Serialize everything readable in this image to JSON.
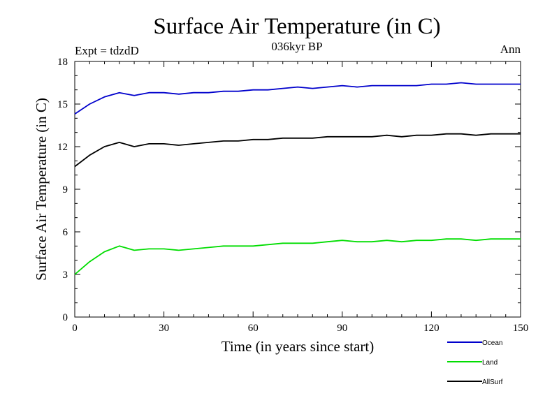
{
  "chart_data": {
    "type": "line",
    "title": "Surface Air Temperature (in C)",
    "subtitle": "036kyr BP",
    "top_left_label": "Expt = tdzdD",
    "top_right_label": "Ann",
    "xlabel": "Time (in years since start)",
    "ylabel": "Surface Air Temperature (in C)",
    "xlim": [
      0,
      150
    ],
    "ylim": [
      0,
      18
    ],
    "xticks": [
      0,
      30,
      60,
      90,
      120,
      150
    ],
    "yticks": [
      0,
      3,
      6,
      9,
      12,
      15,
      18
    ],
    "legend_position": "bottom-right",
    "x": [
      0,
      5,
      10,
      15,
      20,
      25,
      30,
      35,
      40,
      45,
      50,
      55,
      60,
      65,
      70,
      75,
      80,
      85,
      90,
      95,
      100,
      105,
      110,
      115,
      120,
      125,
      130,
      135,
      140,
      145,
      150
    ],
    "series": [
      {
        "name": "Ocean",
        "color": "#0000cc",
        "values": [
          14.3,
          15.0,
          15.5,
          15.8,
          15.6,
          15.8,
          15.8,
          15.7,
          15.8,
          15.8,
          15.9,
          15.9,
          16.0,
          16.0,
          16.1,
          16.2,
          16.1,
          16.2,
          16.3,
          16.2,
          16.3,
          16.3,
          16.3,
          16.3,
          16.4,
          16.4,
          16.5,
          16.4,
          16.4,
          16.4,
          16.4
        ]
      },
      {
        "name": "Land",
        "color": "#00dd00",
        "values": [
          3.0,
          3.9,
          4.6,
          5.0,
          4.7,
          4.8,
          4.8,
          4.7,
          4.8,
          4.9,
          5.0,
          5.0,
          5.0,
          5.1,
          5.2,
          5.2,
          5.2,
          5.3,
          5.4,
          5.3,
          5.3,
          5.4,
          5.3,
          5.4,
          5.4,
          5.5,
          5.5,
          5.4,
          5.5,
          5.5,
          5.5
        ]
      },
      {
        "name": "AllSurf",
        "color": "#000000",
        "values": [
          10.6,
          11.4,
          12.0,
          12.3,
          12.0,
          12.2,
          12.2,
          12.1,
          12.2,
          12.3,
          12.4,
          12.4,
          12.5,
          12.5,
          12.6,
          12.6,
          12.6,
          12.7,
          12.7,
          12.7,
          12.7,
          12.8,
          12.7,
          12.8,
          12.8,
          12.9,
          12.9,
          12.8,
          12.9,
          12.9,
          12.9
        ]
      }
    ]
  }
}
